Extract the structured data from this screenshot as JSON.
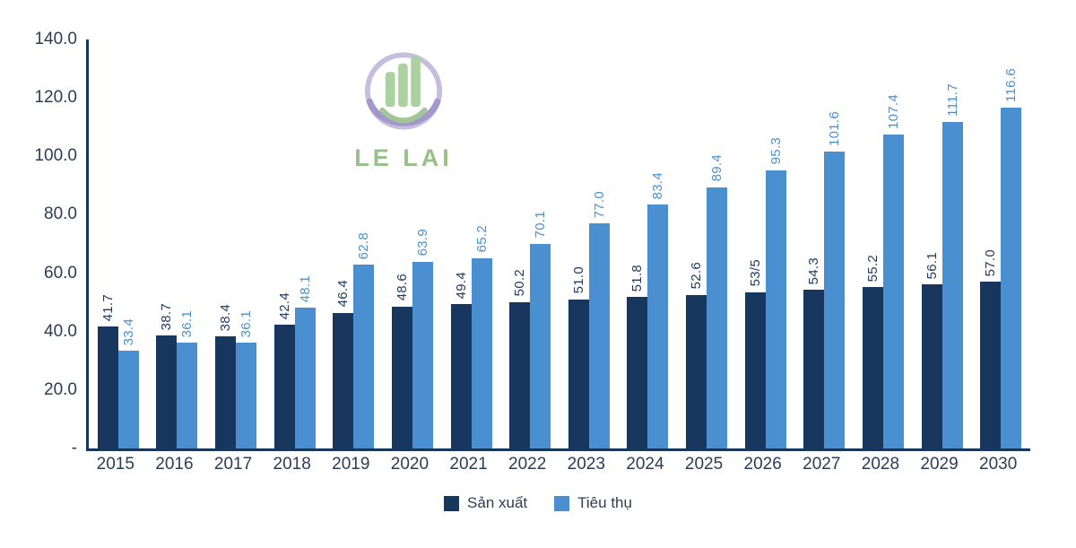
{
  "watermark": {
    "text": "LE LAI"
  },
  "chart_data": {
    "type": "bar",
    "title": "",
    "xlabel": "",
    "ylabel": "",
    "categories": [
      "2015",
      "2016",
      "2017",
      "2018",
      "2019",
      "2020",
      "2021",
      "2022",
      "2023",
      "2024",
      "2025",
      "2026",
      "2027",
      "2028",
      "2029",
      "2030"
    ],
    "series": [
      {
        "name": "Sản xuất",
        "color": "#17375e",
        "label_color": "#1f3b63",
        "values": [
          41.7,
          38.7,
          38.4,
          42.4,
          46.4,
          48.6,
          49.4,
          50.2,
          51.0,
          51.8,
          52.6,
          53.5,
          54.3,
          55.2,
          56.1,
          57.0
        ],
        "labels": [
          "41.7",
          "38.7",
          "38.4",
          "42.4",
          "46.4",
          "48.6",
          "49.4",
          "50.2",
          "51.0",
          "51.8",
          "52.6",
          "53/5",
          "54.3",
          "55.2",
          "56.1",
          "57.0"
        ]
      },
      {
        "name": "Tiêu thụ",
        "color": "#4a90d0",
        "label_color": "#4a90d0",
        "values": [
          33.4,
          36.1,
          36.1,
          48.1,
          62.8,
          63.9,
          65.2,
          70.1,
          77.0,
          83.4,
          89.4,
          95.3,
          101.6,
          107.4,
          111.7,
          116.6
        ],
        "labels": [
          "33.4",
          "36.1",
          "36.1",
          "48.1",
          "62.8",
          "63.9",
          "65.2",
          "70.1",
          "77.0",
          "83.4",
          "89.4",
          "95.3",
          "101.6",
          "107.4",
          "111.7",
          "116.6"
        ]
      }
    ],
    "ylim": [
      0,
      140
    ],
    "yticks": [
      {
        "value": 140,
        "label": "140.0"
      },
      {
        "value": 120,
        "label": "120.0"
      },
      {
        "value": 100,
        "label": "100.0"
      },
      {
        "value": 80,
        "label": "80.0"
      },
      {
        "value": 60,
        "label": "60.0"
      },
      {
        "value": 40,
        "label": "40.0"
      },
      {
        "value": 20,
        "label": "20.0"
      },
      {
        "value": 0,
        "label": "-"
      }
    ],
    "grid": false,
    "legend_position": "bottom"
  }
}
